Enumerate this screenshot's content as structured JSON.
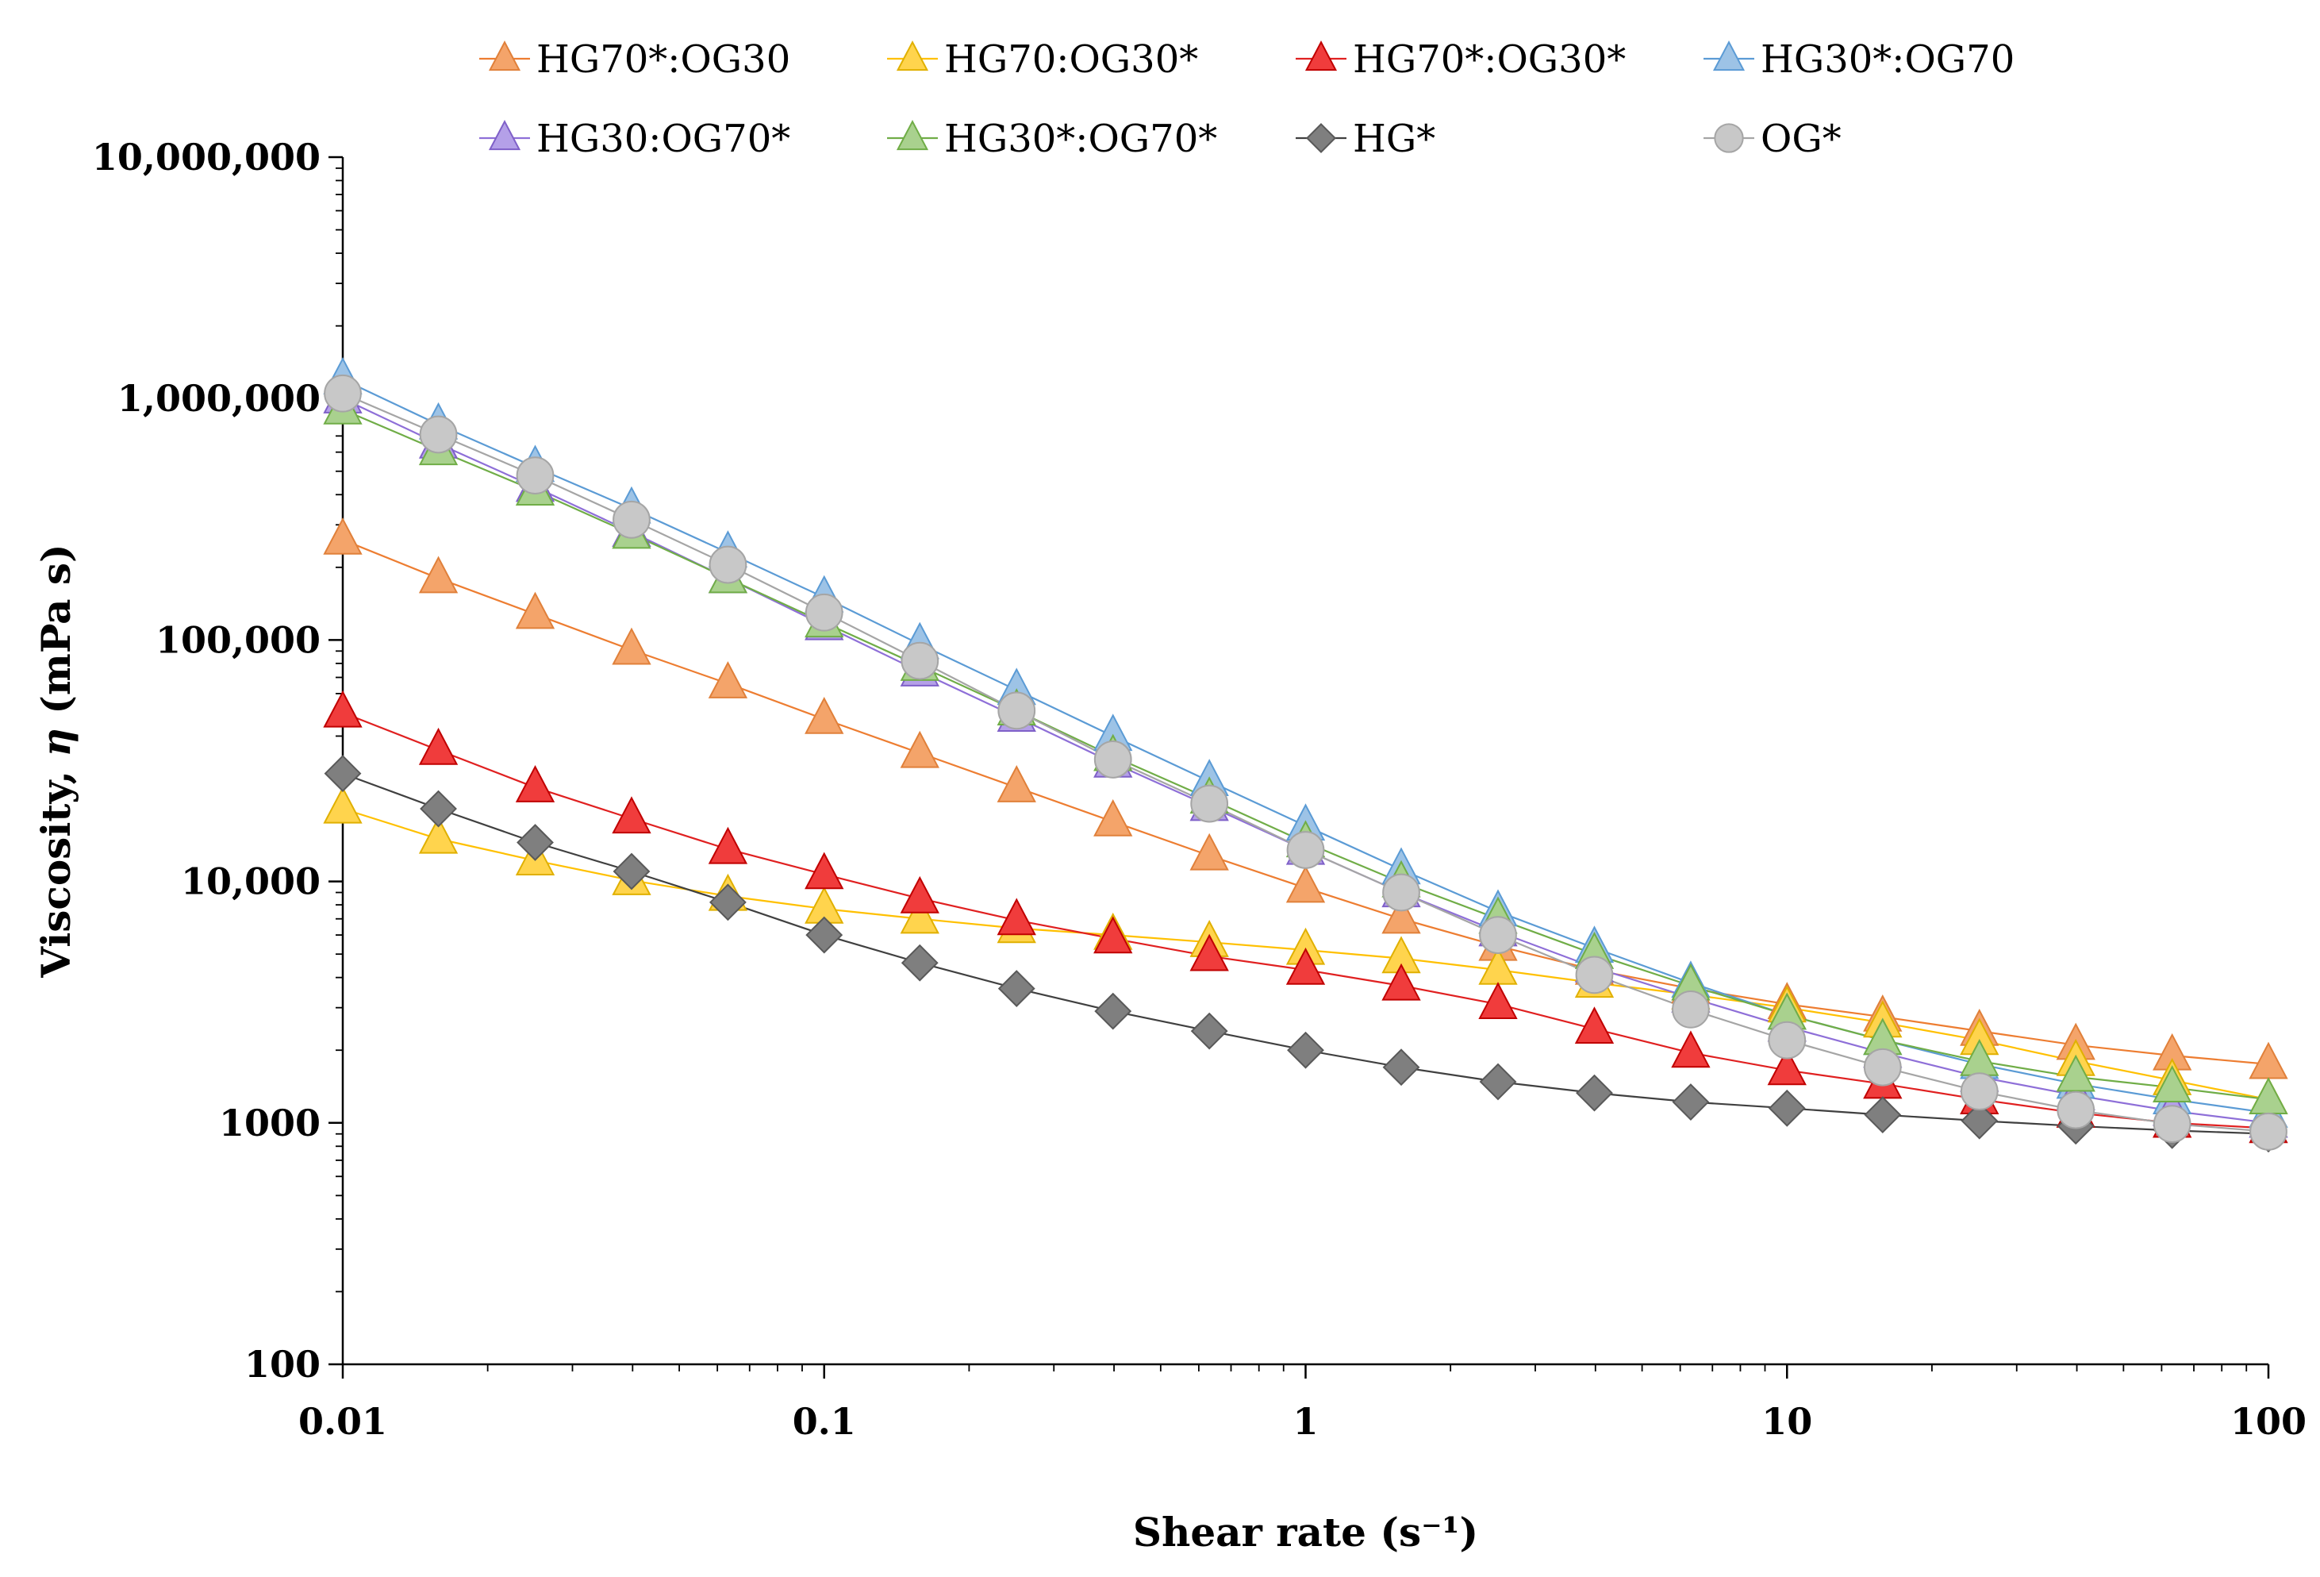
{
  "chart_data": {
    "type": "line",
    "title": "",
    "xlabel": "Shear rate (s⁻¹)",
    "ylabel_prefix": "Viscosity, ",
    "ylabel_symbol": "η",
    "ylabel_unit": " (mPa s)",
    "x_scale": "log",
    "y_scale": "log",
    "xlim": [
      0.01,
      100
    ],
    "ylim": [
      100,
      10000000
    ],
    "x_ticks": [
      0.01,
      0.1,
      1,
      10,
      100
    ],
    "x_tick_labels": [
      "0.01",
      "0.1",
      "1",
      "10",
      "100"
    ],
    "y_ticks": [
      100,
      1000,
      10000,
      100000,
      1000000,
      10000000
    ],
    "y_tick_labels": [
      "100",
      "1000",
      "10,000",
      "100,000",
      "1,000,000",
      "10,000,000"
    ],
    "grid": false,
    "legend_position": "top",
    "x": [
      0.01,
      0.0158,
      0.0251,
      0.0398,
      0.0631,
      0.1,
      0.158,
      0.251,
      0.398,
      0.631,
      1,
      1.58,
      2.51,
      3.98,
      6.31,
      10,
      15.8,
      25.1,
      39.8,
      63.1,
      100
    ],
    "series": [
      {
        "name": "HG70*:OG30",
        "marker": "triangle",
        "color": "#F4A46A",
        "stroke": "#E0803A",
        "line": "#ED7D31",
        "values": [
          260000,
          180000,
          128000,
          91000,
          66000,
          47000,
          34000,
          24500,
          17700,
          12800,
          9400,
          7000,
          5400,
          4300,
          3600,
          3100,
          2750,
          2400,
          2100,
          1900,
          1750
        ]
      },
      {
        "name": "HG70:OG30*",
        "marker": "triangle",
        "color": "#FFD44D",
        "stroke": "#E0B000",
        "line": "#FFC000",
        "values": [
          20000,
          15000,
          12200,
          10100,
          8700,
          7700,
          7000,
          6400,
          6000,
          5600,
          5200,
          4800,
          4300,
          3800,
          3400,
          3000,
          2600,
          2200,
          1800,
          1500,
          1250
        ]
      },
      {
        "name": "HG70*:OG30*",
        "marker": "triangle",
        "color": "#F03C3C",
        "stroke": "#C00000",
        "line": "#E02020",
        "values": [
          50000,
          35000,
          24500,
          18200,
          13600,
          10700,
          8500,
          6900,
          5800,
          4900,
          4300,
          3700,
          3100,
          2450,
          1950,
          1650,
          1450,
          1250,
          1100,
          1000,
          950
        ]
      },
      {
        "name": "HG30*:OG70",
        "marker": "triangle",
        "color": "#9DC3E6",
        "stroke": "#5B9BD5",
        "line": "#5B9BD5",
        "values": [
          1200000,
          780000,
          520000,
          350000,
          230000,
          150000,
          96000,
          62000,
          40000,
          26000,
          17000,
          11200,
          7500,
          5300,
          3800,
          2800,
          2200,
          1750,
          1450,
          1250,
          1100
        ]
      },
      {
        "name": "HG30:OG70*",
        "marker": "triangle",
        "color": "#B4A0E8",
        "stroke": "#7F60C8",
        "line": "#8E6FD8",
        "values": [
          1000000,
          650000,
          430000,
          280000,
          180000,
          115000,
          74000,
          48000,
          31000,
          20500,
          13500,
          9000,
          6200,
          4400,
          3300,
          2500,
          1950,
          1550,
          1300,
          1120,
          1000
        ]
      },
      {
        "name": "HG30*:OG70*",
        "marker": "triangle",
        "color": "#A9D18E",
        "stroke": "#70AD47",
        "line": "#70AD47",
        "values": [
          900000,
          610000,
          415000,
          275000,
          180000,
          118000,
          78000,
          51000,
          33000,
          22000,
          14500,
          9900,
          7000,
          5000,
          3700,
          2800,
          2200,
          1800,
          1550,
          1400,
          1250
        ]
      },
      {
        "name": "HG*",
        "marker": "diamond",
        "color": "#7F7F7F",
        "stroke": "#595959",
        "line": "#404040",
        "values": [
          28000,
          20000,
          14500,
          11000,
          8200,
          6000,
          4600,
          3600,
          2900,
          2400,
          2000,
          1700,
          1480,
          1330,
          1220,
          1150,
          1080,
          1020,
          970,
          930,
          900
        ]
      },
      {
        "name": "OG*",
        "marker": "circle",
        "color": "#C8C8C8",
        "stroke": "#A5A5A5",
        "line": "#A5A5A5",
        "values": [
          1050000,
          710000,
          480000,
          315000,
          205000,
          130000,
          82000,
          51000,
          32000,
          21000,
          13500,
          9000,
          6000,
          4100,
          2950,
          2200,
          1700,
          1350,
          1130,
          990,
          920
        ]
      }
    ]
  }
}
